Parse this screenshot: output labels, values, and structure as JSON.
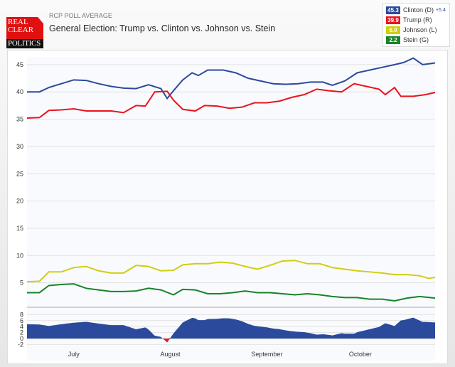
{
  "header": {
    "subtitle": "RCP POLL AVERAGE",
    "title": "General Election: Trump vs. Clinton vs. Johnson vs. Stein",
    "logo_text": [
      "REAL",
      "CLEAR",
      "POLITICS"
    ]
  },
  "legend": [
    {
      "value": "45.3",
      "label": "Clinton (D)",
      "extra": "+5.4",
      "color": "#2b4a9b"
    },
    {
      "value": "39.9",
      "label": "Trump (R)",
      "extra": "",
      "color": "#e8141e"
    },
    {
      "value": "6.0",
      "label": "Johnson (L)",
      "extra": "",
      "color": "#cfcf10"
    },
    {
      "value": "2.2",
      "label": "Stein (G)",
      "extra": "",
      "color": "#17842a"
    }
  ],
  "chart_data": [
    {
      "type": "line",
      "ylim": [
        0,
        47
      ],
      "yticks": [
        5,
        10,
        15,
        20,
        25,
        30,
        35,
        40,
        45
      ],
      "grid": true,
      "xrange": [
        "Jun 16",
        "Oct 25"
      ],
      "series": [
        {
          "name": "Clinton (D)",
          "color": "#2b4a9b",
          "points": [
            [
              "Jun 16",
              40
            ],
            [
              "Jun 20",
              40
            ],
            [
              "Jun 23",
              40.8
            ],
            [
              "Jun 27",
              41.5
            ],
            [
              "Jul 1",
              42.2
            ],
            [
              "Jul 5",
              42.1
            ],
            [
              "Jul 9",
              41.5
            ],
            [
              "Jul 13",
              41
            ],
            [
              "Jul 17",
              40.7
            ],
            [
              "Jul 21",
              40.6
            ],
            [
              "Jul 25",
              41.3
            ],
            [
              "Jul 29",
              40.6
            ],
            [
              "Jul 31",
              38.8
            ],
            [
              "Aug 2",
              40.2
            ],
            [
              "Aug 5",
              42.2
            ],
            [
              "Aug 8",
              43.5
            ],
            [
              "Aug 10",
              43
            ],
            [
              "Aug 13",
              44
            ],
            [
              "Aug 18",
              44
            ],
            [
              "Aug 22",
              43.5
            ],
            [
              "Aug 26",
              42.5
            ],
            [
              "Aug 30",
              42
            ],
            [
              "Sep 3",
              41.5
            ],
            [
              "Sep 7",
              41.4
            ],
            [
              "Sep 11",
              41.5
            ],
            [
              "Sep 15",
              41.8
            ],
            [
              "Sep 19",
              41.8
            ],
            [
              "Sep 22",
              41.2
            ],
            [
              "Sep 26",
              42
            ],
            [
              "Sep 30",
              43.5
            ],
            [
              "Oct 4",
              44
            ],
            [
              "Oct 8",
              44.5
            ],
            [
              "Oct 12",
              45
            ],
            [
              "Oct 15",
              45.4
            ],
            [
              "Oct 18",
              46.2
            ],
            [
              "Oct 21",
              45
            ],
            [
              "Oct 25",
              45.3
            ]
          ]
        },
        {
          "name": "Trump (R)",
          "color": "#e8141e",
          "points": [
            [
              "Jun 16",
              35.2
            ],
            [
              "Jun 20",
              35.3
            ],
            [
              "Jun 23",
              36.6
            ],
            [
              "Jun 27",
              36.7
            ],
            [
              "Jul 1",
              36.9
            ],
            [
              "Jul 5",
              36.5
            ],
            [
              "Jul 9",
              36.5
            ],
            [
              "Jul 13",
              36.5
            ],
            [
              "Jul 17",
              36.2
            ],
            [
              "Jul 21",
              37.5
            ],
            [
              "Jul 24",
              37.4
            ],
            [
              "Jul 27",
              40
            ],
            [
              "Jul 31",
              40.1
            ],
            [
              "Aug 2",
              38.5
            ],
            [
              "Aug 5",
              36.8
            ],
            [
              "Aug 9",
              36.5
            ],
            [
              "Aug 12",
              37.5
            ],
            [
              "Aug 16",
              37.4
            ],
            [
              "Aug 20",
              37
            ],
            [
              "Aug 24",
              37.2
            ],
            [
              "Aug 28",
              38
            ],
            [
              "Sep 1",
              38
            ],
            [
              "Sep 5",
              38.3
            ],
            [
              "Sep 9",
              39
            ],
            [
              "Sep 13",
              39.5
            ],
            [
              "Sep 17",
              40.5
            ],
            [
              "Sep 21",
              40.2
            ],
            [
              "Sep 25",
              40
            ],
            [
              "Sep 29",
              41.5
            ],
            [
              "Oct 3",
              41
            ],
            [
              "Oct 7",
              40.5
            ],
            [
              "Oct 9",
              39.5
            ],
            [
              "Oct 12",
              40.8
            ],
            [
              "Oct 14",
              39.2
            ],
            [
              "Oct 18",
              39.2
            ],
            [
              "Oct 22",
              39.5
            ],
            [
              "Oct 25",
              39.9
            ]
          ]
        },
        {
          "name": "Johnson (L)",
          "color": "#cfcf10",
          "points": [
            [
              "Jun 16",
              5.2
            ],
            [
              "Jun 20",
              5.3
            ],
            [
              "Jun 23",
              7
            ],
            [
              "Jun 27",
              7
            ],
            [
              "Jul 1",
              7.8
            ],
            [
              "Jul 5",
              8
            ],
            [
              "Jul 9",
              7.2
            ],
            [
              "Jul 13",
              6.8
            ],
            [
              "Jul 17",
              6.8
            ],
            [
              "Jul 21",
              8.2
            ],
            [
              "Jul 25",
              8
            ],
            [
              "Jul 29",
              7.2
            ],
            [
              "Aug 2",
              7.3
            ],
            [
              "Aug 5",
              8.3
            ],
            [
              "Aug 9",
              8.5
            ],
            [
              "Aug 13",
              8.5
            ],
            [
              "Aug 17",
              8.8
            ],
            [
              "Aug 21",
              8.6
            ],
            [
              "Aug 25",
              8
            ],
            [
              "Aug 29",
              7.5
            ],
            [
              "Sep 2",
              8.2
            ],
            [
              "Sep 6",
              9
            ],
            [
              "Sep 10",
              9.1
            ],
            [
              "Sep 14",
              8.5
            ],
            [
              "Sep 18",
              8.5
            ],
            [
              "Sep 22",
              7.8
            ],
            [
              "Sep 26",
              7.5
            ],
            [
              "Sep 30",
              7.2
            ],
            [
              "Oct 4",
              7
            ],
            [
              "Oct 8",
              6.8
            ],
            [
              "Oct 12",
              6.5
            ],
            [
              "Oct 16",
              6.5
            ],
            [
              "Oct 20",
              6.3
            ],
            [
              "Oct 23",
              5.8
            ],
            [
              "Oct 25",
              6.0
            ]
          ]
        },
        {
          "name": "Stein (G)",
          "color": "#17842a",
          "points": [
            [
              "Jun 16",
              3.2
            ],
            [
              "Jun 20",
              3.2
            ],
            [
              "Jun 23",
              4.5
            ],
            [
              "Jun 27",
              4.7
            ],
            [
              "Jul 1",
              4.8
            ],
            [
              "Jul 5",
              4
            ],
            [
              "Jul 9",
              3.7
            ],
            [
              "Jul 13",
              3.4
            ],
            [
              "Jul 17",
              3.4
            ],
            [
              "Jul 21",
              3.5
            ],
            [
              "Jul 25",
              4
            ],
            [
              "Jul 29",
              3.7
            ],
            [
              "Aug 2",
              2.8
            ],
            [
              "Aug 5",
              3.8
            ],
            [
              "Aug 9",
              3.7
            ],
            [
              "Aug 13",
              3
            ],
            [
              "Aug 17",
              3
            ],
            [
              "Aug 21",
              3.2
            ],
            [
              "Aug 25",
              3.5
            ],
            [
              "Aug 29",
              3.2
            ],
            [
              "Sep 2",
              3.2
            ],
            [
              "Sep 6",
              3
            ],
            [
              "Sep 10",
              2.8
            ],
            [
              "Sep 14",
              3
            ],
            [
              "Sep 18",
              2.8
            ],
            [
              "Sep 22",
              2.5
            ],
            [
              "Sep 26",
              2.3
            ],
            [
              "Sep 30",
              2.3
            ],
            [
              "Oct 4",
              2
            ],
            [
              "Oct 8",
              2
            ],
            [
              "Oct 12",
              1.7
            ],
            [
              "Oct 16",
              2.2
            ],
            [
              "Oct 20",
              2.5
            ],
            [
              "Oct 25",
              2.2
            ]
          ]
        }
      ]
    },
    {
      "type": "area",
      "ylim": [
        -2,
        8
      ],
      "yticks": [
        -2,
        0,
        2,
        4,
        6,
        8
      ],
      "positive_color": "#2b4a9b",
      "negative_color": "#e8141e",
      "xticks": [
        "July",
        "August",
        "September",
        "October"
      ]
    }
  ]
}
